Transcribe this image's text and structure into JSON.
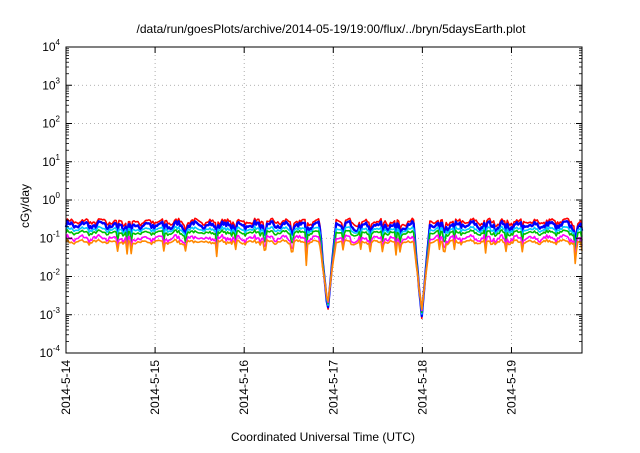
{
  "chart_data": {
    "type": "line",
    "title": "/data/run/goesPlots/archive/2014-05-19/19:00/flux/../bryn/5daysEarth.plot",
    "xlabel": "Coordinated Universal Time (UTC)",
    "ylabel": "cGy/day",
    "yscale": "log",
    "ylim": [
      0.0001,
      10000
    ],
    "xlim": [
      "2014-05-14 00:00",
      "2014-05-19 19:00"
    ],
    "x_ticks": [
      "2014-5-14",
      "2014-5-15",
      "2014-5-16",
      "2014-5-17",
      "2014-5-18",
      "2014-5-19"
    ],
    "y_ticks": [
      {
        "base": "10",
        "exp": "-4"
      },
      {
        "base": "10",
        "exp": "-3"
      },
      {
        "base": "10",
        "exp": "-2"
      },
      {
        "base": "10",
        "exp": "-1"
      },
      {
        "base": "10",
        "exp": "0"
      },
      {
        "base": "10",
        "exp": "1"
      },
      {
        "base": "10",
        "exp": "2"
      },
      {
        "base": "10",
        "exp": "3"
      },
      {
        "base": "10",
        "exp": "4"
      }
    ],
    "grid": true,
    "grid_style": "dotted",
    "legend": "none",
    "approximate_dips": [
      {
        "x": "2014-05-16 22:30",
        "y": 0.0011
      },
      {
        "x": "2014-05-17 23:50",
        "y": 0.0008
      }
    ],
    "series": [
      {
        "color": "#ff0000",
        "level": 0.27,
        "amp": 0.12
      },
      {
        "color": "#0000ff",
        "level": 0.22,
        "amp": 0.15
      },
      {
        "color": "#00c8ff",
        "level": 0.17,
        "amp": 0.1
      },
      {
        "color": "#00c000",
        "level": 0.14,
        "amp": 0.09
      },
      {
        "color": "#ff00ff",
        "level": 0.1,
        "amp": 0.12
      },
      {
        "color": "#ff8800",
        "level": 0.08,
        "amp": 0.08
      }
    ]
  }
}
